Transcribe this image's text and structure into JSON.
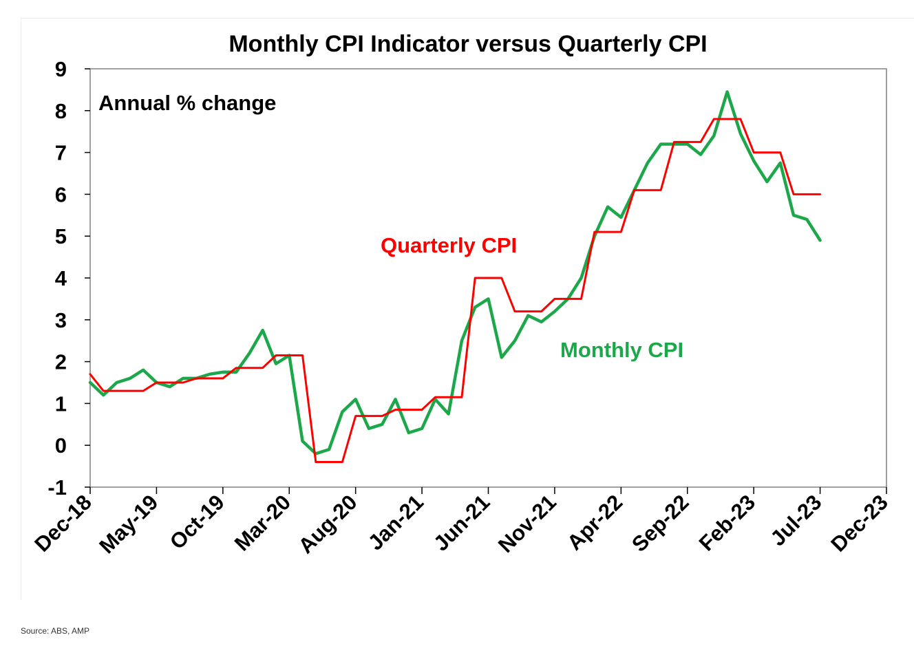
{
  "chart_data": {
    "type": "line",
    "title": "Monthly CPI Indicator versus Quarterly CPI",
    "annotation": "Annual % change",
    "ylim": [
      -1,
      9
    ],
    "y_ticks": [
      "-1",
      "0",
      "1",
      "2",
      "3",
      "4",
      "5",
      "6",
      "7",
      "8",
      "9"
    ],
    "x_range": [
      "2018-12",
      "2023-12"
    ],
    "x_ticks": [
      {
        "date": "2018-12",
        "label": "Dec-18"
      },
      {
        "date": "2019-05",
        "label": "May-19"
      },
      {
        "date": "2019-10",
        "label": "Oct-19"
      },
      {
        "date": "2020-03",
        "label": "Mar-20"
      },
      {
        "date": "2020-08",
        "label": "Aug-20"
      },
      {
        "date": "2021-01",
        "label": "Jan-21"
      },
      {
        "date": "2021-06",
        "label": "Jun-21"
      },
      {
        "date": "2021-11",
        "label": "Nov-21"
      },
      {
        "date": "2022-04",
        "label": "Apr-22"
      },
      {
        "date": "2022-09",
        "label": "Sep-22"
      },
      {
        "date": "2023-02",
        "label": "Feb-23"
      },
      {
        "date": "2023-07",
        "label": "Jul-23"
      },
      {
        "date": "2023-12",
        "label": "Dec-23"
      }
    ],
    "grid": false,
    "series": [
      {
        "name": "Quarterly CPI",
        "color": "#ff0000",
        "shape": "step",
        "points": [
          [
            "2018-12",
            1.7
          ],
          [
            "2019-01",
            1.3
          ],
          [
            "2019-02",
            1.3
          ],
          [
            "2019-03",
            1.3
          ],
          [
            "2019-04",
            1.3
          ],
          [
            "2019-05",
            1.5
          ],
          [
            "2019-06",
            1.5
          ],
          [
            "2019-07",
            1.5
          ],
          [
            "2019-08",
            1.6
          ],
          [
            "2019-09",
            1.6
          ],
          [
            "2019-10",
            1.6
          ],
          [
            "2019-11",
            1.85
          ],
          [
            "2019-12",
            1.85
          ],
          [
            "2020-01",
            1.85
          ],
          [
            "2020-02",
            2.15
          ],
          [
            "2020-03",
            2.15
          ],
          [
            "2020-04",
            2.15
          ],
          [
            "2020-05",
            -0.4
          ],
          [
            "2020-06",
            -0.4
          ],
          [
            "2020-07",
            -0.4
          ],
          [
            "2020-08",
            0.7
          ],
          [
            "2020-09",
            0.7
          ],
          [
            "2020-10",
            0.7
          ],
          [
            "2020-11",
            0.85
          ],
          [
            "2020-12",
            0.85
          ],
          [
            "2021-01",
            0.85
          ],
          [
            "2021-02",
            1.15
          ],
          [
            "2021-03",
            1.15
          ],
          [
            "2021-04",
            1.15
          ],
          [
            "2021-05",
            4.0
          ],
          [
            "2021-06",
            4.0
          ],
          [
            "2021-07",
            4.0
          ],
          [
            "2021-08",
            3.2
          ],
          [
            "2021-09",
            3.2
          ],
          [
            "2021-10",
            3.2
          ],
          [
            "2021-11",
            3.5
          ],
          [
            "2021-12",
            3.5
          ],
          [
            "2022-01",
            3.5
          ],
          [
            "2022-02",
            5.1
          ],
          [
            "2022-03",
            5.1
          ],
          [
            "2022-04",
            5.1
          ],
          [
            "2022-05",
            6.1
          ],
          [
            "2022-06",
            6.1
          ],
          [
            "2022-07",
            6.1
          ],
          [
            "2022-08",
            7.25
          ],
          [
            "2022-09",
            7.25
          ],
          [
            "2022-10",
            7.25
          ],
          [
            "2022-11",
            7.8
          ],
          [
            "2022-12",
            7.8
          ],
          [
            "2023-01",
            7.8
          ],
          [
            "2023-02",
            7.0
          ],
          [
            "2023-03",
            7.0
          ],
          [
            "2023-04",
            7.0
          ],
          [
            "2023-05",
            6.0
          ],
          [
            "2023-06",
            6.0
          ],
          [
            "2023-07",
            6.0
          ]
        ]
      },
      {
        "name": "Monthly CPI",
        "color": "#1ca84a",
        "shape": "line",
        "points": [
          [
            "2018-12",
            1.5
          ],
          [
            "2019-01",
            1.2
          ],
          [
            "2019-02",
            1.5
          ],
          [
            "2019-03",
            1.6
          ],
          [
            "2019-04",
            1.8
          ],
          [
            "2019-05",
            1.5
          ],
          [
            "2019-06",
            1.4
          ],
          [
            "2019-07",
            1.6
          ],
          [
            "2019-08",
            1.6
          ],
          [
            "2019-09",
            1.7
          ],
          [
            "2019-10",
            1.75
          ],
          [
            "2019-11",
            1.75
          ],
          [
            "2019-12",
            2.2
          ],
          [
            "2020-01",
            2.75
          ],
          [
            "2020-02",
            1.95
          ],
          [
            "2020-03",
            2.15
          ],
          [
            "2020-04",
            0.1
          ],
          [
            "2020-05",
            -0.2
          ],
          [
            "2020-06",
            -0.1
          ],
          [
            "2020-07",
            0.8
          ],
          [
            "2020-08",
            1.1
          ],
          [
            "2020-09",
            0.4
          ],
          [
            "2020-10",
            0.5
          ],
          [
            "2020-11",
            1.1
          ],
          [
            "2020-12",
            0.3
          ],
          [
            "2021-01",
            0.4
          ],
          [
            "2021-02",
            1.1
          ],
          [
            "2021-03",
            0.75
          ],
          [
            "2021-04",
            2.5
          ],
          [
            "2021-05",
            3.3
          ],
          [
            "2021-06",
            3.5
          ],
          [
            "2021-07",
            2.1
          ],
          [
            "2021-08",
            2.5
          ],
          [
            "2021-09",
            3.1
          ],
          [
            "2021-10",
            2.95
          ],
          [
            "2021-11",
            3.2
          ],
          [
            "2021-12",
            3.5
          ],
          [
            "2022-01",
            4.0
          ],
          [
            "2022-02",
            5.0
          ],
          [
            "2022-03",
            5.7
          ],
          [
            "2022-04",
            5.45
          ],
          [
            "2022-05",
            6.1
          ],
          [
            "2022-06",
            6.75
          ],
          [
            "2022-07",
            7.2
          ],
          [
            "2022-08",
            7.2
          ],
          [
            "2022-09",
            7.2
          ],
          [
            "2022-10",
            6.95
          ],
          [
            "2022-11",
            7.4
          ],
          [
            "2022-12",
            8.45
          ],
          [
            "2023-01",
            7.45
          ],
          [
            "2023-02",
            6.8
          ],
          [
            "2023-03",
            6.3
          ],
          [
            "2023-04",
            6.75
          ],
          [
            "2023-05",
            5.5
          ],
          [
            "2023-06",
            5.4
          ],
          [
            "2023-07",
            4.9
          ]
        ]
      }
    ],
    "series_labels": {
      "quarterly": "Quarterly CPI",
      "monthly": "Monthly CPI"
    }
  },
  "source": "Source: ABS, AMP"
}
